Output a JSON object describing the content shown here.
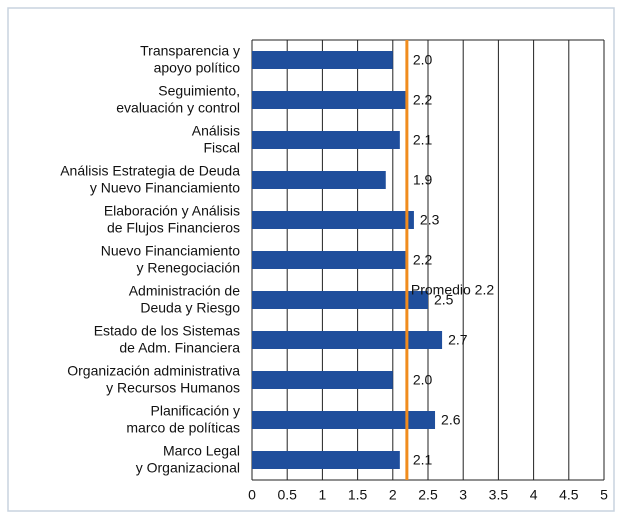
{
  "chart_data": {
    "type": "bar",
    "orientation": "horizontal",
    "categories": [
      "Transparencia y\napoyo político",
      "Seguimiento,\nevaluación y control",
      "Análisis\nFiscal",
      "Análisis Estrategia de Deuda\ny Nuevo Financiamiento",
      "Elaboración y Análisis\nde Flujos Financieros",
      "Nuevo Financiamiento\ny Renegociación",
      "Administración de\nDeuda y Riesgo",
      "Estado de los Sistemas\nde Adm. Financiera",
      "Organización administrativa\ny Recursos Humanos",
      "Planificación y\nmarco de políticas",
      "Marco Legal\ny Organizacional"
    ],
    "values": [
      2.0,
      2.2,
      2.1,
      1.9,
      2.3,
      2.2,
      2.5,
      2.7,
      2.0,
      2.6,
      2.1
    ],
    "value_labels": [
      "2.0",
      "2.2",
      "2.1",
      "1.9",
      "2.3",
      "2.2",
      "2.5",
      "2.7",
      "2.0",
      "2.6",
      "2.1"
    ],
    "color": "#1f4e9c",
    "xlim": [
      0,
      5
    ],
    "xticks": [
      0,
      0.5,
      1,
      1.5,
      2,
      2.5,
      3,
      3.5,
      4,
      4.5,
      5
    ],
    "grid": true,
    "average": {
      "value": 2.2,
      "label": "Promedio 2.2",
      "color": "#f08c1e"
    }
  }
}
